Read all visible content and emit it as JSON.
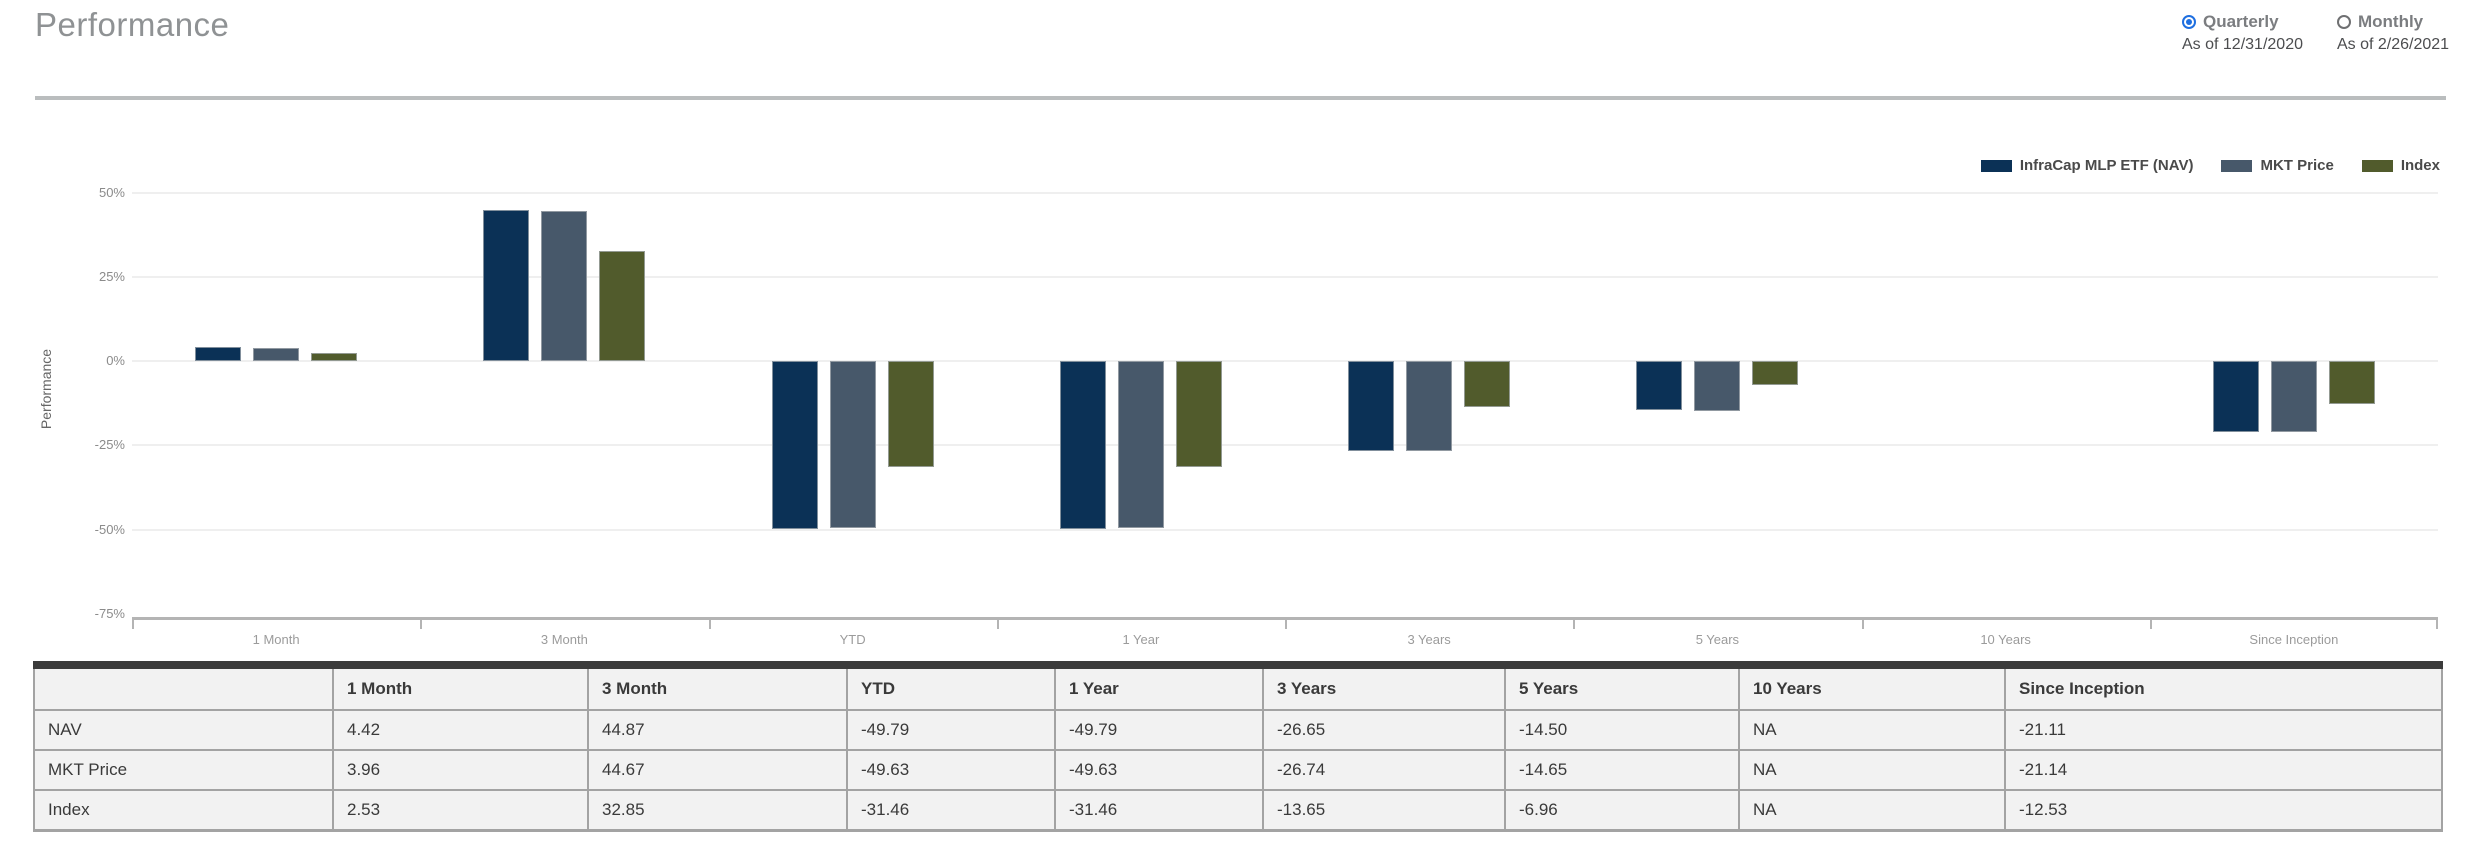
{
  "header": {
    "title": "Performance"
  },
  "controls": {
    "quarterly": {
      "label": "Quarterly",
      "as_of": "As of 12/31/2020",
      "selected": true
    },
    "monthly": {
      "label": "Monthly",
      "as_of": "As of 2/26/2021",
      "selected": false
    }
  },
  "colors": {
    "nav": "#0b3156",
    "mkt_price": "#47586a",
    "index": "#515b2c",
    "radio_selected": "#1f6fe0",
    "table_top_bar": "#3b3b3b",
    "table_border": "#a3a3a3"
  },
  "chart_data": {
    "type": "bar",
    "title": "",
    "categories": [
      "1 Month",
      "3 Month",
      "YTD",
      "1 Year",
      "3 Years",
      "5 Years",
      "10 Years",
      "Since Inception"
    ],
    "series": [
      {
        "name": "InfraCap MLP ETF (NAV)",
        "color": "#0b3156",
        "values": [
          4.42,
          44.87,
          -49.79,
          -49.79,
          -26.65,
          -14.5,
          null,
          -21.11
        ]
      },
      {
        "name": "MKT Price",
        "color": "#47586a",
        "values": [
          3.96,
          44.67,
          -49.63,
          -49.63,
          -26.74,
          -14.65,
          null,
          -21.14
        ]
      },
      {
        "name": "Index",
        "color": "#515b2c",
        "values": [
          2.53,
          32.85,
          -31.46,
          -31.46,
          -13.65,
          -6.96,
          null,
          -12.53
        ]
      }
    ],
    "xlabel": "",
    "ylabel": "Performance",
    "yticks": [
      50,
      25,
      0,
      -25,
      -50,
      -75
    ],
    "ytick_suffix": "%",
    "ylim": [
      -76,
      57.5
    ],
    "grid": true,
    "legend_position": "top-right"
  },
  "table": {
    "columns": [
      "",
      "1 Month",
      "3 Month",
      "YTD",
      "1 Year",
      "3 Years",
      "5 Years",
      "10 Years",
      "Since Inception"
    ],
    "rows": [
      {
        "label": "NAV",
        "values": [
          "4.42",
          "44.87",
          "-49.79",
          "-49.79",
          "-26.65",
          "-14.50",
          "NA",
          "-21.11"
        ]
      },
      {
        "label": "MKT Price",
        "values": [
          "3.96",
          "44.67",
          "-49.63",
          "-49.63",
          "-26.74",
          "-14.65",
          "NA",
          "-21.14"
        ]
      },
      {
        "label": "Index",
        "values": [
          "2.53",
          "32.85",
          "-31.46",
          "-31.46",
          "-13.65",
          "-6.96",
          "NA",
          "-12.53"
        ]
      }
    ]
  }
}
